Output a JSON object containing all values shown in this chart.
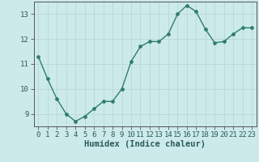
{
  "x": [
    0,
    1,
    2,
    3,
    4,
    5,
    6,
    7,
    8,
    9,
    10,
    11,
    12,
    13,
    14,
    15,
    16,
    17,
    18,
    19,
    20,
    21,
    22,
    23
  ],
  "y": [
    11.3,
    10.4,
    9.6,
    9.0,
    8.7,
    8.9,
    9.2,
    9.5,
    9.5,
    10.0,
    11.1,
    11.7,
    11.9,
    11.9,
    12.2,
    13.0,
    13.35,
    13.1,
    12.4,
    11.85,
    11.9,
    12.2,
    12.45,
    12.45
  ],
  "line_color": "#2e7d6e",
  "bg_color": "#cdeaea",
  "grid_color_major": "#b8d8d8",
  "grid_color_minor": "#d4ecec",
  "xlabel": "Humidex (Indice chaleur)",
  "ylim": [
    8.5,
    13.5
  ],
  "xlim": [
    -0.5,
    23.5
  ],
  "yticks": [
    9,
    10,
    11,
    12,
    13
  ],
  "xticks": [
    0,
    1,
    2,
    3,
    4,
    5,
    6,
    7,
    8,
    9,
    10,
    11,
    12,
    13,
    14,
    15,
    16,
    17,
    18,
    19,
    20,
    21,
    22,
    23
  ],
  "tick_fontsize": 6.5,
  "xlabel_fontsize": 7.5,
  "line_width": 1.0,
  "marker_size": 2.8
}
